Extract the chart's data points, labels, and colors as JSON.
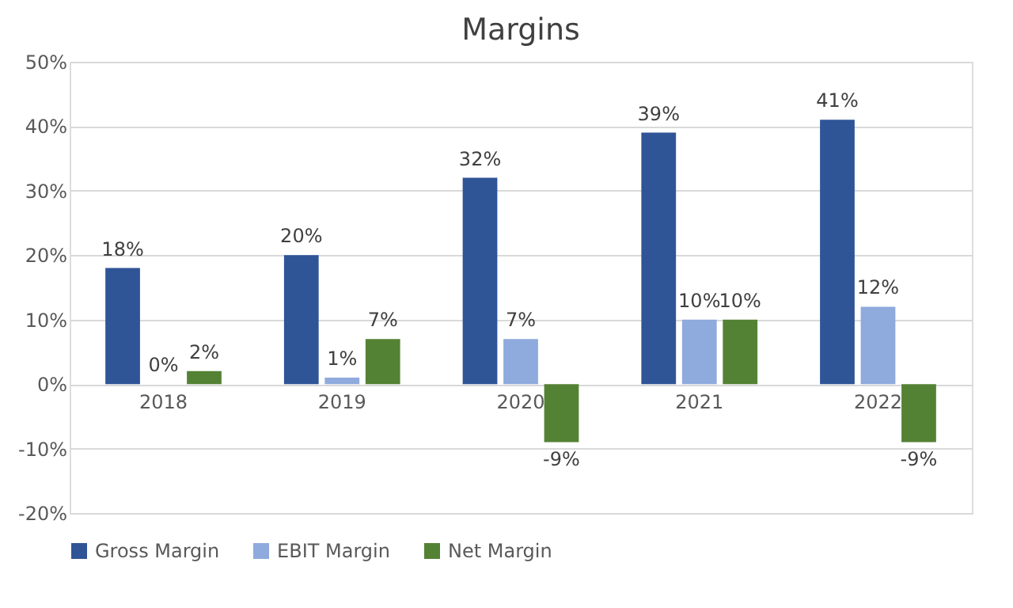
{
  "chart_data": {
    "type": "bar",
    "title": "Margins",
    "categories": [
      "2018",
      "2019",
      "2020",
      "2021",
      "2022"
    ],
    "series": [
      {
        "name": "Gross Margin",
        "color": "#2f5597",
        "values": [
          18,
          20,
          32,
          39,
          41
        ],
        "value_labels": [
          "18%",
          "20%",
          "32%",
          "39%",
          "41%"
        ]
      },
      {
        "name": "EBIT Margin",
        "color": "#8faadc",
        "values": [
          0,
          1,
          7,
          10,
          12
        ],
        "value_labels": [
          "0%",
          "1%",
          "7%",
          "10%",
          "12%"
        ]
      },
      {
        "name": "Net Margin",
        "color": "#548235",
        "values": [
          2,
          7,
          -9,
          10,
          -9
        ],
        "value_labels": [
          "2%",
          "7%",
          "-9%",
          "10%",
          "-9%"
        ]
      }
    ],
    "ylim": [
      -20,
      50
    ],
    "yticks": [
      {
        "value": -20,
        "label": "-20%"
      },
      {
        "value": -10,
        "label": "-10%"
      },
      {
        "value": 0,
        "label": "0%"
      },
      {
        "value": 10,
        "label": "10%"
      },
      {
        "value": 20,
        "label": "20%"
      },
      {
        "value": 30,
        "label": "30%"
      },
      {
        "value": 40,
        "label": "40%"
      },
      {
        "value": 50,
        "label": "50%"
      }
    ],
    "grid": "y",
    "legend": "bottom"
  }
}
